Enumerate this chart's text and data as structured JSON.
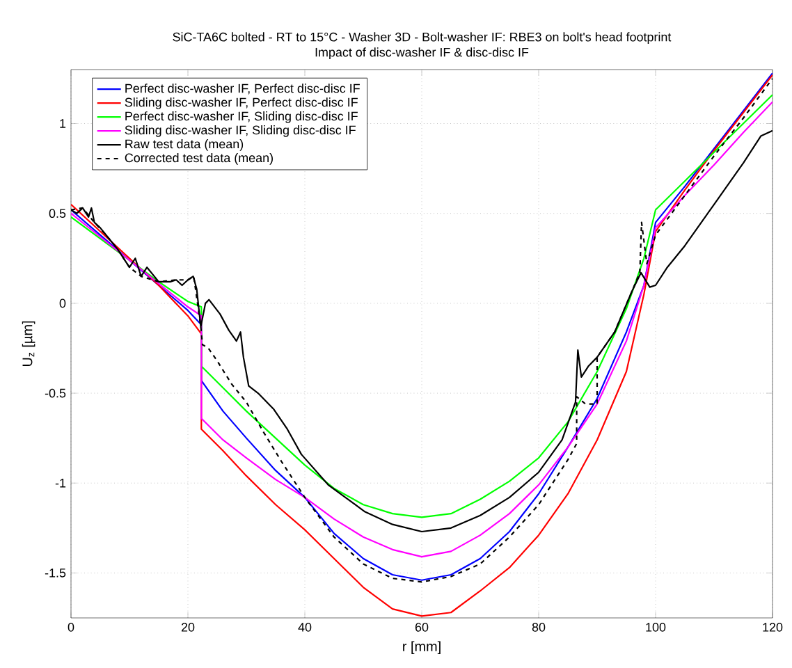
{
  "chart_data": {
    "type": "line",
    "title": "SiC-TA6C bolted - RT to 15°C - Washer 3D - Bolt-washer IF: RBE3 on bolt's head footprint",
    "subtitle": "Impact of disc-washer IF & disc-disc IF",
    "xlabel": "r [mm]",
    "ylabel": "U$_{z}$ [µm]",
    "xlim": [
      0,
      120
    ],
    "ylim": [
      -1.75,
      1.3
    ],
    "xticks": [
      0,
      20,
      40,
      60,
      80,
      100,
      120
    ],
    "yticks": [
      -1.5,
      -1,
      -0.5,
      0,
      0.5,
      1
    ],
    "grid": true,
    "legend": "top left",
    "line_style": "solid",
    "series": [
      {
        "name": "Perfect disc-washer IF, Perfect disc-disc IF",
        "color": "#0000ff",
        "x": [
          0,
          5,
          10,
          15,
          20,
          22.3,
          22.3,
          26,
          30,
          35,
          40,
          45,
          50,
          55,
          60,
          65,
          70,
          75,
          80,
          85,
          90,
          95,
          98,
          100,
          105,
          110,
          115,
          120
        ],
        "values": [
          0.52,
          0.38,
          0.24,
          0.1,
          -0.04,
          -0.12,
          -0.43,
          -0.6,
          -0.75,
          -0.93,
          -1.08,
          -1.28,
          -1.42,
          -1.51,
          -1.54,
          -1.51,
          -1.42,
          -1.27,
          -1.06,
          -0.8,
          -0.53,
          -0.16,
          0.1,
          0.45,
          0.65,
          0.86,
          1.07,
          1.28
        ]
      },
      {
        "name": "Sliding disc-washer IF, Perfect disc-disc IF",
        "color": "#ff0000",
        "x": [
          0,
          5,
          10,
          15,
          20,
          22.3,
          22.3,
          26,
          30,
          35,
          40,
          45,
          50,
          55,
          60,
          65,
          70,
          75,
          80,
          85,
          90,
          95,
          98,
          100,
          105,
          110,
          115,
          120
        ],
        "values": [
          0.55,
          0.4,
          0.25,
          0.1,
          -0.07,
          -0.17,
          -0.7,
          -0.82,
          -0.96,
          -1.12,
          -1.26,
          -1.42,
          -1.58,
          -1.7,
          -1.74,
          -1.72,
          -1.6,
          -1.47,
          -1.29,
          -1.06,
          -0.76,
          -0.38,
          0.05,
          0.4,
          0.63,
          0.85,
          1.06,
          1.27
        ]
      },
      {
        "name": "Perfect disc-washer IF, Sliding  disc-disc IF",
        "color": "#00ff00",
        "x": [
          0,
          5,
          10,
          15,
          20,
          22.3,
          22.3,
          26,
          30,
          35,
          40,
          45,
          50,
          55,
          60,
          65,
          70,
          75,
          80,
          85,
          90,
          95,
          98,
          100,
          105,
          110,
          115,
          120
        ],
        "values": [
          0.48,
          0.36,
          0.24,
          0.12,
          0.01,
          -0.02,
          -0.35,
          -0.47,
          -0.6,
          -0.75,
          -0.9,
          -1.03,
          -1.12,
          -1.17,
          -1.19,
          -1.17,
          -1.09,
          -0.99,
          -0.86,
          -0.66,
          -0.38,
          -0.03,
          0.25,
          0.52,
          0.68,
          0.84,
          1.0,
          1.16
        ]
      },
      {
        "name": "Sliding disc-washer IF, Sliding  disc-disc IF",
        "color": "#ff00ff",
        "x": [
          0,
          5,
          10,
          15,
          20,
          22.3,
          22.3,
          26,
          30,
          35,
          40,
          45,
          50,
          55,
          60,
          65,
          70,
          75,
          80,
          85,
          90,
          95,
          98,
          100,
          105,
          110,
          115,
          120
        ],
        "values": [
          0.5,
          0.37,
          0.24,
          0.11,
          -0.02,
          -0.07,
          -0.64,
          -0.76,
          -0.86,
          -0.98,
          -1.08,
          -1.2,
          -1.3,
          -1.37,
          -1.41,
          -1.38,
          -1.29,
          -1.17,
          -1.01,
          -0.8,
          -0.56,
          -0.21,
          0.1,
          0.42,
          0.6,
          0.77,
          0.95,
          1.12
        ]
      },
      {
        "name": "Raw test data (mean)",
        "color": "#000000",
        "x": [
          0,
          1,
          2,
          3,
          3.5,
          4,
          5,
          6,
          8,
          10,
          11,
          12,
          13,
          15,
          17,
          18,
          19,
          20,
          20.9,
          21.5,
          22.2,
          23,
          23.6,
          25.5,
          27,
          28.3,
          29,
          29.5,
          30.4,
          32,
          34.7,
          37,
          39.4,
          44,
          50.3,
          55,
          60,
          65,
          70,
          75,
          80,
          84,
          86.3,
          86.7,
          87.3,
          88.5,
          90,
          93,
          96,
          97.5,
          99,
          100,
          102,
          105,
          110,
          115,
          118,
          120
        ],
        "values": [
          0.52,
          0.5,
          0.53,
          0.48,
          0.53,
          0.45,
          0.42,
          0.38,
          0.3,
          0.2,
          0.25,
          0.15,
          0.2,
          0.12,
          0.12,
          0.13,
          0.1,
          0.13,
          0.15,
          0.08,
          -0.13,
          0.0,
          0.02,
          -0.06,
          -0.15,
          -0.21,
          -0.16,
          -0.3,
          -0.46,
          -0.5,
          -0.59,
          -0.7,
          -0.84,
          -1.01,
          -1.16,
          -1.23,
          -1.27,
          -1.25,
          -1.18,
          -1.08,
          -0.94,
          -0.76,
          -0.55,
          -0.26,
          -0.41,
          -0.35,
          -0.3,
          -0.16,
          0.07,
          0.17,
          0.09,
          0.1,
          0.2,
          0.32,
          0.55,
          0.78,
          0.93,
          0.96
        ]
      },
      {
        "name": "Corrected test data (mean)",
        "color": "#000000",
        "line_style": "dashed",
        "x": [
          0,
          2,
          4,
          6,
          8,
          10,
          12,
          15,
          18,
          20,
          21,
          22.2,
          22.5,
          23.5,
          25,
          27.5,
          30,
          33,
          36,
          40,
          45,
          50,
          55,
          60,
          65,
          70,
          75,
          80,
          85,
          86.5,
          86.5,
          88,
          90,
          90,
          93,
          96,
          97.3,
          97.6,
          98.5,
          100,
          105,
          110,
          115,
          120
        ],
        "values": [
          0.52,
          0.53,
          0.45,
          0.38,
          0.3,
          0.2,
          0.15,
          0.12,
          0.13,
          0.13,
          0.15,
          -0.13,
          -0.23,
          -0.25,
          -0.32,
          -0.45,
          -0.55,
          -0.72,
          -0.88,
          -1.08,
          -1.3,
          -1.45,
          -1.53,
          -1.55,
          -1.52,
          -1.45,
          -1.3,
          -1.12,
          -0.87,
          -0.78,
          -0.52,
          -0.56,
          -0.56,
          -0.3,
          -0.16,
          0.07,
          0.17,
          0.45,
          0.22,
          0.38,
          0.6,
          0.82,
          1.03,
          1.25
        ]
      }
    ]
  }
}
